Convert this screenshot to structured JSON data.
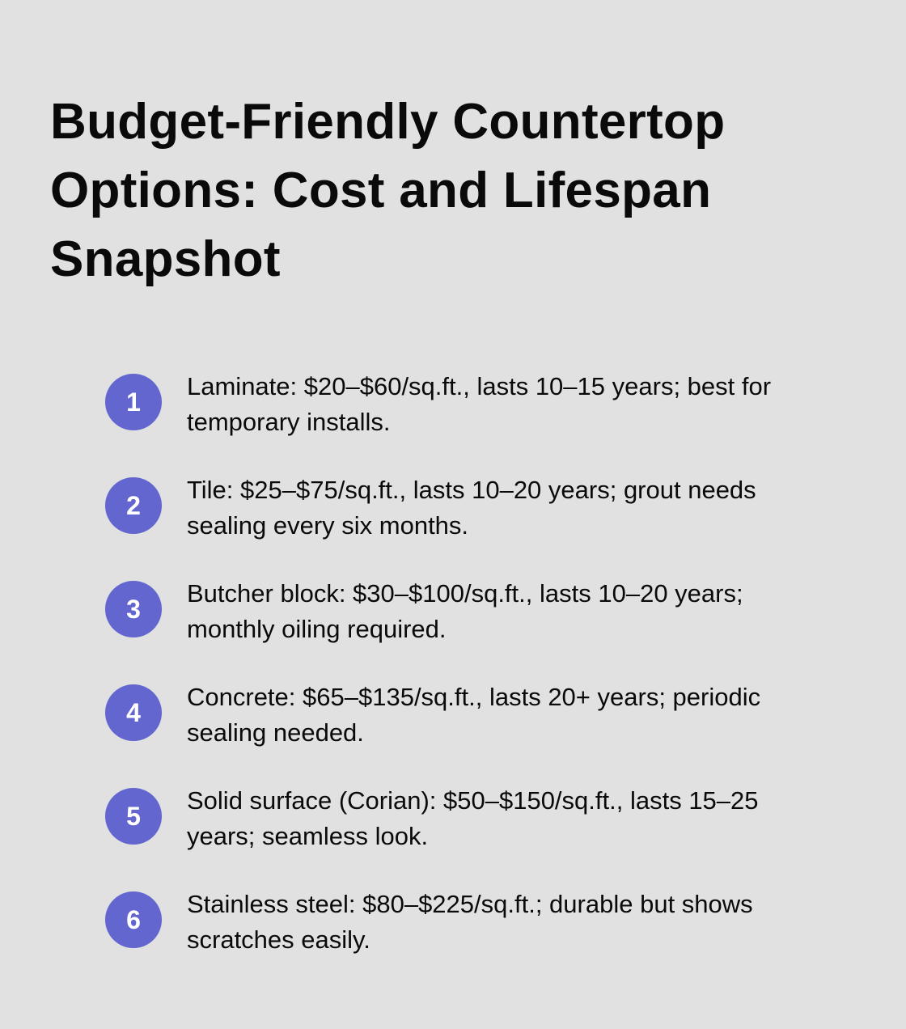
{
  "title": "Budget-Friendly Countertop Options: Cost and Lifespan Snapshot",
  "accent_color": "#6366cf",
  "items": [
    {
      "number": "1",
      "text": "Laminate: $20–$60/sq.ft., lasts 10–15 years; best for temporary installs."
    },
    {
      "number": "2",
      "text": "Tile: $25–$75/sq.ft., lasts 10–20 years; grout needs sealing every six months."
    },
    {
      "number": "3",
      "text": "Butcher block: $30–$100/sq.ft., lasts 10–20 years; monthly oiling required."
    },
    {
      "number": "4",
      "text": "Concrete: $65–$135/sq.ft., lasts 20+ years; periodic sealing needed."
    },
    {
      "number": "5",
      "text": "Solid surface (Corian): $50–$150/sq.ft., lasts 15–25 years; seamless look."
    },
    {
      "number": "6",
      "text": "Stainless steel: $80–$225/sq.ft.; durable but shows scratches easily."
    }
  ]
}
